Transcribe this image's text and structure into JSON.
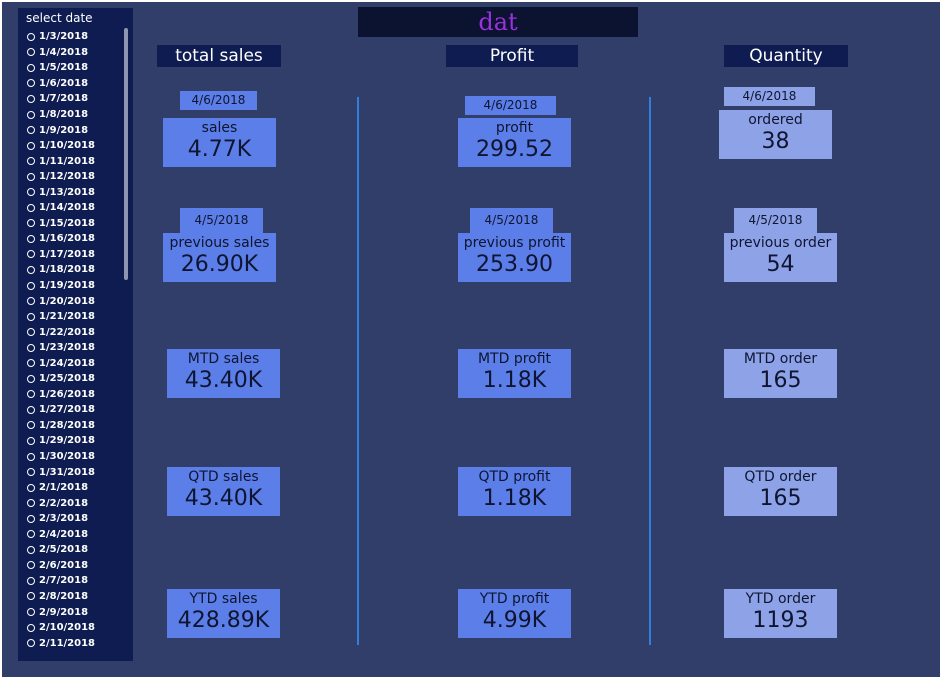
{
  "slicer": {
    "title": "select date",
    "dates": [
      "1/3/2018",
      "1/4/2018",
      "1/5/2018",
      "1/6/2018",
      "1/7/2018",
      "1/8/2018",
      "1/9/2018",
      "1/10/2018",
      "1/11/2018",
      "1/12/2018",
      "1/13/2018",
      "1/14/2018",
      "1/15/2018",
      "1/16/2018",
      "1/17/2018",
      "1/18/2018",
      "1/19/2018",
      "1/20/2018",
      "1/21/2018",
      "1/22/2018",
      "1/23/2018",
      "1/24/2018",
      "1/25/2018",
      "1/26/2018",
      "1/27/2018",
      "1/28/2018",
      "1/29/2018",
      "1/30/2018",
      "1/31/2018",
      "2/1/2018",
      "2/2/2018",
      "2/3/2018",
      "2/4/2018",
      "2/5/2018",
      "2/6/2018",
      "2/7/2018",
      "2/8/2018",
      "2/9/2018",
      "2/10/2018",
      "2/11/2018"
    ]
  },
  "title": "dat",
  "columns": {
    "sales": {
      "header": "total sales",
      "current_date": "4/6/2018",
      "previous_date": "4/5/2018",
      "cards": {
        "current": {
          "label": "sales",
          "value": "4.77K"
        },
        "previous": {
          "label": "previous sales",
          "value": "26.90K"
        },
        "mtd": {
          "label": "MTD sales",
          "value": "43.40K"
        },
        "qtd": {
          "label": "QTD sales",
          "value": "43.40K"
        },
        "ytd": {
          "label": "YTD sales",
          "value": "428.89K"
        }
      }
    },
    "profit": {
      "header": "Profit",
      "current_date": "4/6/2018",
      "previous_date": "4/5/2018",
      "cards": {
        "current": {
          "label": "profit",
          "value": "299.52"
        },
        "previous": {
          "label": "previous profit",
          "value": "253.90"
        },
        "mtd": {
          "label": "MTD profit",
          "value": "1.18K"
        },
        "qtd": {
          "label": "QTD profit",
          "value": "1.18K"
        },
        "ytd": {
          "label": "YTD profit",
          "value": "4.99K"
        }
      }
    },
    "quantity": {
      "header": "Quantity",
      "current_date": "4/6/2018",
      "previous_date": "4/5/2018",
      "cards": {
        "current": {
          "label": "ordered",
          "value": "38"
        },
        "previous": {
          "label": "previous order",
          "value": "54"
        },
        "mtd": {
          "label": "MTD order",
          "value": "165"
        },
        "qtd": {
          "label": "QTD order",
          "value": "165"
        },
        "ytd": {
          "label": "YTD order",
          "value": "1193"
        }
      }
    }
  },
  "colors": {
    "background": "#323e6a",
    "panel": "#0e1c52",
    "card_blue": "#5b7ee8",
    "card_light": "#8ea2e8",
    "title_text": "#9b30e0",
    "divider": "#2f7fde"
  }
}
